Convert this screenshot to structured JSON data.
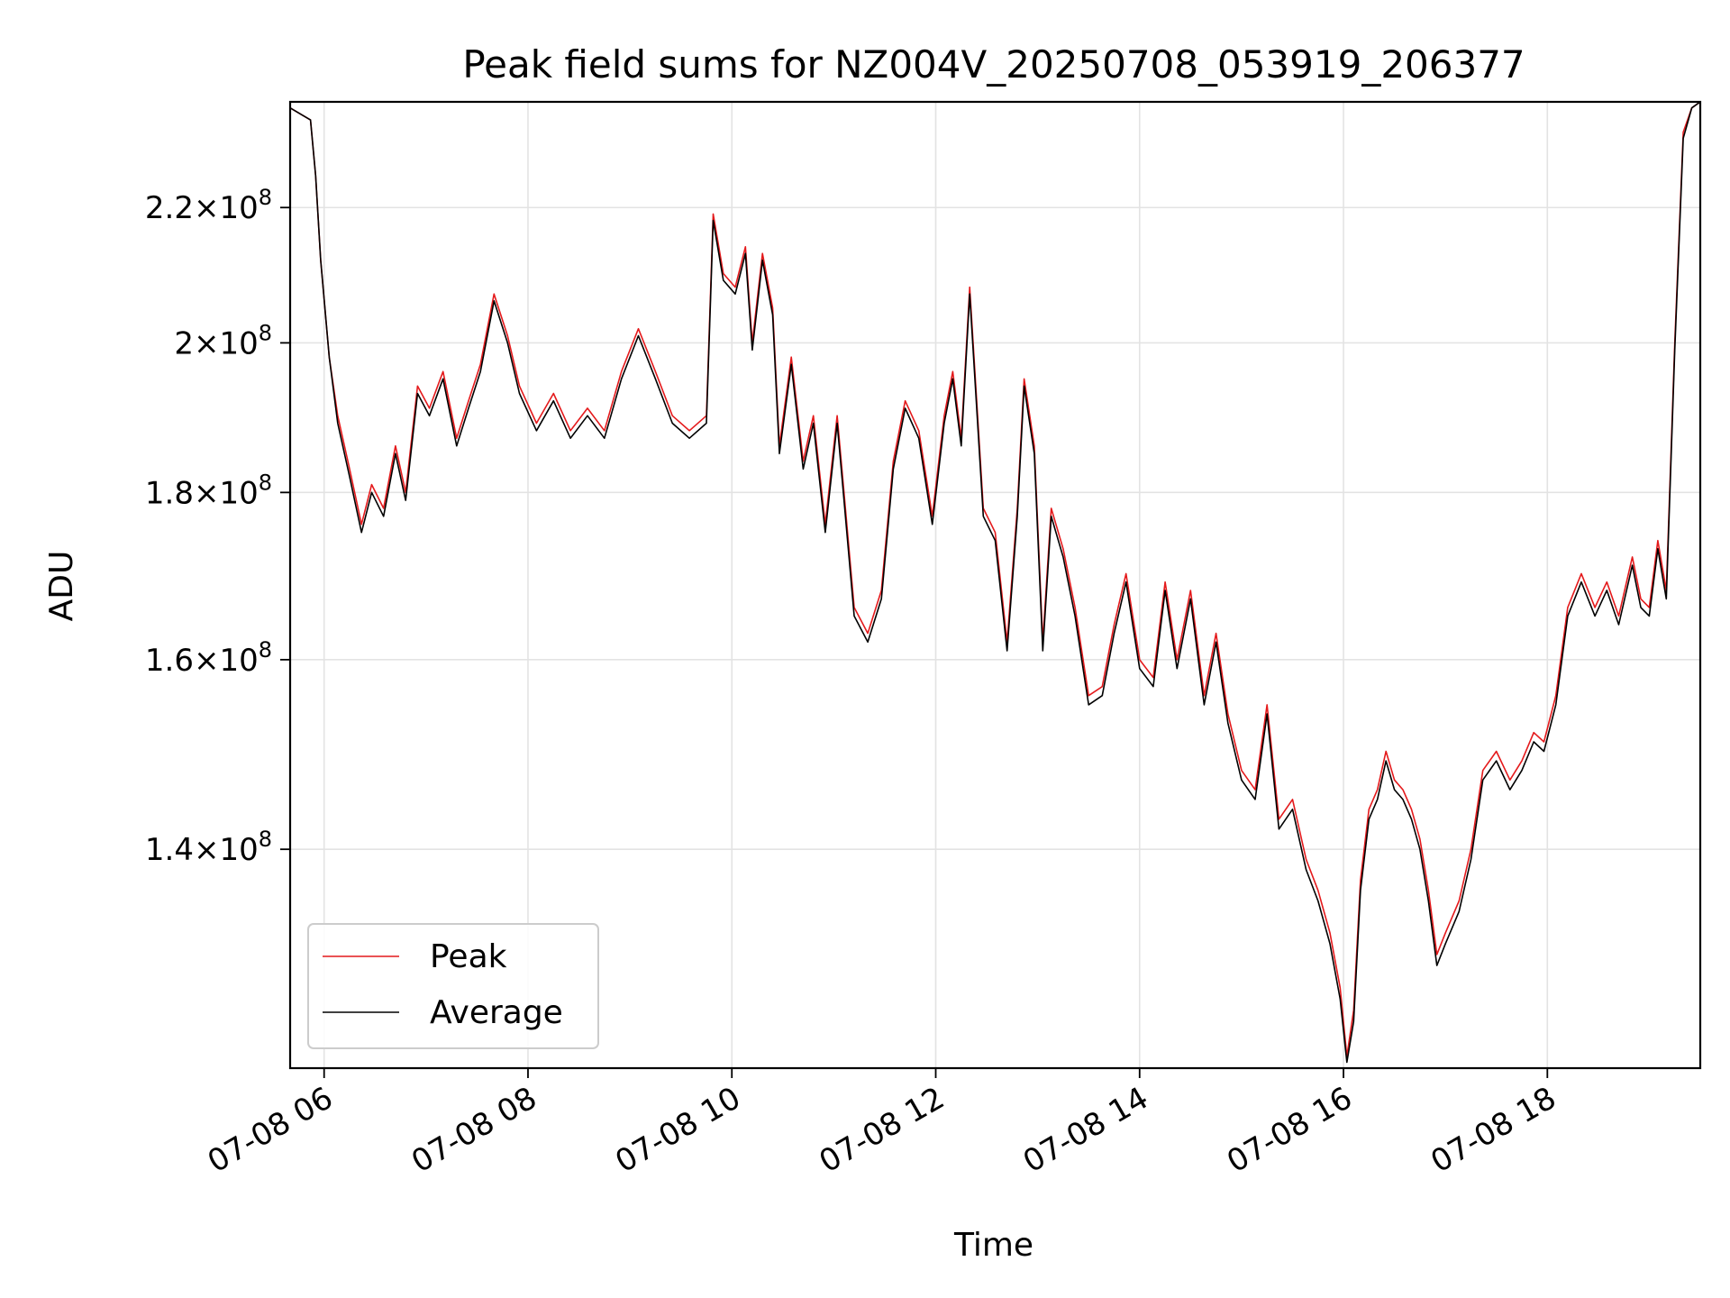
{
  "chart_data": {
    "type": "line",
    "title": "Peak field sums for NZ004V_20250708_053919_206377",
    "xlabel": "Time",
    "ylabel": "ADU",
    "y_scale": "log",
    "ylim": [
      120000000,
      237000000
    ],
    "xlim": [
      "2025-07-08 05:40",
      "2025-07-08 19:30"
    ],
    "grid": true,
    "legend_position": "lower-left",
    "x_ticks": [
      {
        "value": "2025-07-08 06:00",
        "label": "07-08 06"
      },
      {
        "value": "2025-07-08 08:00",
        "label": "07-08 08"
      },
      {
        "value": "2025-07-08 10:00",
        "label": "07-08 10"
      },
      {
        "value": "2025-07-08 12:00",
        "label": "07-08 12"
      },
      {
        "value": "2025-07-08 14:00",
        "label": "07-08 14"
      },
      {
        "value": "2025-07-08 16:00",
        "label": "07-08 16"
      },
      {
        "value": "2025-07-08 18:00",
        "label": "07-08 18"
      }
    ],
    "y_ticks": [
      {
        "value": 220000000,
        "mantissa": "2.2",
        "base": "10",
        "exponent": "8"
      },
      {
        "value": 200000000,
        "mantissa": "2",
        "base": "10",
        "exponent": "8"
      },
      {
        "value": 180000000,
        "mantissa": "1.8",
        "base": "10",
        "exponent": "8"
      },
      {
        "value": 160000000,
        "mantissa": "1.6",
        "base": "10",
        "exponent": "8"
      },
      {
        "value": 140000000,
        "mantissa": "1.4",
        "base": "10",
        "exponent": "8"
      }
    ],
    "x": [
      "2025-07-08 05:40",
      "2025-07-08 05:52",
      "2025-07-08 05:55",
      "2025-07-08 05:58",
      "2025-07-08 06:03",
      "2025-07-08 06:08",
      "2025-07-08 06:15",
      "2025-07-08 06:22",
      "2025-07-08 06:28",
      "2025-07-08 06:35",
      "2025-07-08 06:42",
      "2025-07-08 06:48",
      "2025-07-08 06:55",
      "2025-07-08 07:02",
      "2025-07-08 07:10",
      "2025-07-08 07:18",
      "2025-07-08 07:25",
      "2025-07-08 07:32",
      "2025-07-08 07:40",
      "2025-07-08 07:48",
      "2025-07-08 07:55",
      "2025-07-08 08:05",
      "2025-07-08 08:15",
      "2025-07-08 08:25",
      "2025-07-08 08:35",
      "2025-07-08 08:45",
      "2025-07-08 08:55",
      "2025-07-08 09:05",
      "2025-07-08 09:15",
      "2025-07-08 09:25",
      "2025-07-08 09:35",
      "2025-07-08 09:45",
      "2025-07-08 09:49",
      "2025-07-08 09:55",
      "2025-07-08 10:02",
      "2025-07-08 10:08",
      "2025-07-08 10:12",
      "2025-07-08 10:18",
      "2025-07-08 10:24",
      "2025-07-08 10:28",
      "2025-07-08 10:35",
      "2025-07-08 10:42",
      "2025-07-08 10:48",
      "2025-07-08 10:55",
      "2025-07-08 11:02",
      "2025-07-08 11:06",
      "2025-07-08 11:12",
      "2025-07-08 11:20",
      "2025-07-08 11:28",
      "2025-07-08 11:35",
      "2025-07-08 11:42",
      "2025-07-08 11:50",
      "2025-07-08 11:58",
      "2025-07-08 12:05",
      "2025-07-08 12:10",
      "2025-07-08 12:15",
      "2025-07-08 12:20",
      "2025-07-08 12:28",
      "2025-07-08 12:35",
      "2025-07-08 12:42",
      "2025-07-08 12:48",
      "2025-07-08 12:52",
      "2025-07-08 12:58",
      "2025-07-08 13:03",
      "2025-07-08 13:08",
      "2025-07-08 13:15",
      "2025-07-08 13:22",
      "2025-07-08 13:30",
      "2025-07-08 13:38",
      "2025-07-08 13:45",
      "2025-07-08 13:52",
      "2025-07-08 14:00",
      "2025-07-08 14:08",
      "2025-07-08 14:15",
      "2025-07-08 14:22",
      "2025-07-08 14:30",
      "2025-07-08 14:38",
      "2025-07-08 14:45",
      "2025-07-08 14:52",
      "2025-07-08 15:00",
      "2025-07-08 15:08",
      "2025-07-08 15:15",
      "2025-07-08 15:22",
      "2025-07-08 15:30",
      "2025-07-08 15:38",
      "2025-07-08 15:45",
      "2025-07-08 15:52",
      "2025-07-08 15:58",
      "2025-07-08 16:02",
      "2025-07-08 16:06",
      "2025-07-08 16:10",
      "2025-07-08 16:15",
      "2025-07-08 16:20",
      "2025-07-08 16:25",
      "2025-07-08 16:30",
      "2025-07-08 16:35",
      "2025-07-08 16:40",
      "2025-07-08 16:45",
      "2025-07-08 16:50",
      "2025-07-08 16:55",
      "2025-07-08 17:00",
      "2025-07-08 17:08",
      "2025-07-08 17:15",
      "2025-07-08 17:22",
      "2025-07-08 17:30",
      "2025-07-08 17:38",
      "2025-07-08 17:45",
      "2025-07-08 17:52",
      "2025-07-08 17:58",
      "2025-07-08 18:05",
      "2025-07-08 18:12",
      "2025-07-08 18:20",
      "2025-07-08 18:28",
      "2025-07-08 18:35",
      "2025-07-08 18:42",
      "2025-07-08 18:50",
      "2025-07-08 18:55",
      "2025-07-08 19:00",
      "2025-07-08 19:05",
      "2025-07-08 19:10",
      "2025-07-08 19:15",
      "2025-07-08 19:20",
      "2025-07-08 19:25",
      "2025-07-08 19:30"
    ],
    "series": [
      {
        "name": "Peak",
        "color": "#e41a1c",
        "values": [
          236000000,
          234000000,
          225000000,
          212000000,
          198000000,
          190000000,
          183000000,
          176000000,
          181000000,
          178000000,
          186000000,
          180000000,
          194000000,
          191000000,
          196000000,
          187000000,
          192000000,
          197000000,
          207000000,
          201000000,
          194000000,
          189000000,
          193000000,
          188000000,
          191000000,
          188000000,
          196000000,
          202000000,
          196000000,
          190000000,
          188000000,
          190000000,
          219000000,
          210000000,
          208000000,
          214000000,
          200000000,
          213000000,
          205000000,
          186000000,
          198000000,
          184000000,
          190000000,
          176000000,
          190000000,
          180000000,
          166000000,
          163000000,
          168000000,
          184000000,
          192000000,
          188000000,
          177000000,
          190000000,
          196000000,
          187000000,
          208000000,
          178000000,
          175000000,
          162000000,
          178000000,
          195000000,
          186000000,
          162000000,
          178000000,
          173000000,
          166000000,
          156000000,
          157000000,
          164000000,
          170000000,
          160000000,
          158000000,
          169000000,
          160000000,
          168000000,
          156000000,
          163000000,
          154000000,
          148000000,
          146000000,
          155000000,
          143000000,
          145000000,
          139000000,
          136000000,
          132000000,
          127000000,
          121000000,
          125000000,
          137000000,
          144000000,
          146000000,
          150000000,
          147000000,
          146000000,
          144000000,
          141000000,
          136000000,
          130000000,
          132000000,
          135000000,
          140000000,
          148000000,
          150000000,
          147000000,
          149000000,
          152000000,
          151000000,
          156000000,
          166000000,
          170000000,
          166000000,
          169000000,
          165000000,
          172000000,
          167000000,
          166000000,
          174000000,
          168000000,
          200000000,
          232000000,
          236000000,
          237000000
        ]
      },
      {
        "name": "Average",
        "color": "#000000",
        "values": [
          236000000,
          234000000,
          225000000,
          212000000,
          198000000,
          189000000,
          182000000,
          175000000,
          180000000,
          177000000,
          185000000,
          179000000,
          193000000,
          190000000,
          195000000,
          186000000,
          191000000,
          196000000,
          206000000,
          200000000,
          193000000,
          188000000,
          192000000,
          187000000,
          190000000,
          187000000,
          195000000,
          201000000,
          195000000,
          189000000,
          187000000,
          189000000,
          218000000,
          209000000,
          207000000,
          213000000,
          199000000,
          212000000,
          204000000,
          185000000,
          197000000,
          183000000,
          189000000,
          175000000,
          189000000,
          179000000,
          165000000,
          162000000,
          167000000,
          183000000,
          191000000,
          187000000,
          176000000,
          189000000,
          195000000,
          186000000,
          207000000,
          177000000,
          174000000,
          161000000,
          177000000,
          194000000,
          185000000,
          161000000,
          177000000,
          172000000,
          165000000,
          155000000,
          156000000,
          163000000,
          169000000,
          159000000,
          157000000,
          168000000,
          159000000,
          167000000,
          155000000,
          162000000,
          153000000,
          147000000,
          145000000,
          154000000,
          142000000,
          144000000,
          138000000,
          135000000,
          131000000,
          126000000,
          120500000,
          124000000,
          136000000,
          143000000,
          145000000,
          149000000,
          146000000,
          145000000,
          143000000,
          140000000,
          135000000,
          129000000,
          131000000,
          134000000,
          139000000,
          147000000,
          149000000,
          146000000,
          148000000,
          151000000,
          150000000,
          155000000,
          165000000,
          169000000,
          165000000,
          168000000,
          164000000,
          171000000,
          166000000,
          165000000,
          173000000,
          167000000,
          199000000,
          231000000,
          236000000,
          237000000
        ]
      }
    ]
  }
}
